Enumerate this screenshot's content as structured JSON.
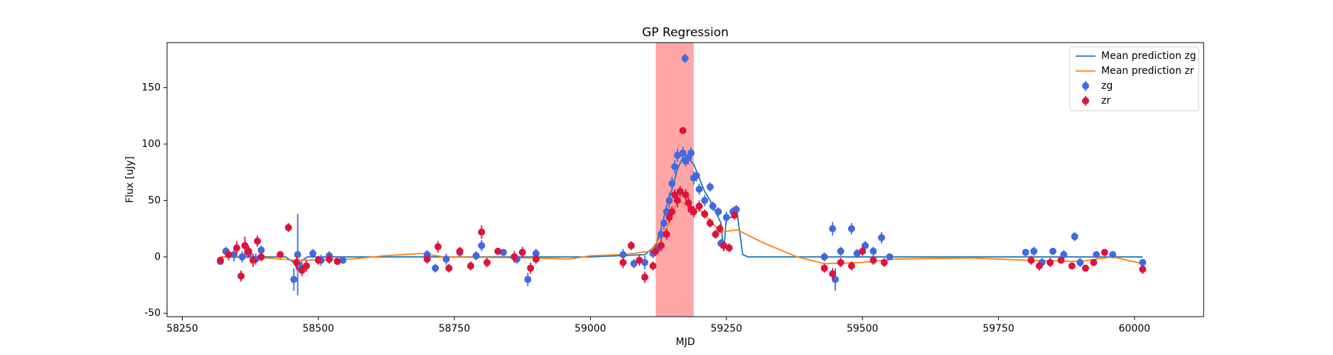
{
  "chart_data": {
    "type": "scatter",
    "title": "GP Regression",
    "x_label": "MJD",
    "y_label": "Flux [uJy]",
    "xlim": [
      58222,
      60127
    ],
    "ylim": [
      -53,
      190
    ],
    "xticks": [
      58250,
      58500,
      58750,
      59000,
      59250,
      59500,
      59750,
      60000
    ],
    "yticks": [
      -50,
      0,
      50,
      100,
      150
    ],
    "legend": "upper right",
    "span": {
      "x": [
        59120,
        59190
      ],
      "color": "#ff0000",
      "opacity": 0.35
    },
    "series": [
      {
        "name": "Mean prediction zg",
        "kind": "line",
        "color": "#1f77b4",
        "x": [
          58320,
          58440,
          58455,
          58462,
          58470,
          58480,
          59000,
          59100,
          59120,
          59130,
          59140,
          59150,
          59160,
          59170,
          59180,
          59190,
          59200,
          59210,
          59220,
          59230,
          59240,
          59245,
          59250,
          59260,
          59270,
          59280,
          59290,
          60015
        ],
        "values": [
          0,
          0,
          -5,
          -12,
          -3,
          0,
          0,
          2,
          10,
          25,
          45,
          60,
          78,
          88,
          88,
          82,
          70,
          58,
          50,
          40,
          30,
          5,
          35,
          35,
          38,
          2,
          0,
          0
        ]
      },
      {
        "name": "Mean prediction zr",
        "kind": "line",
        "color": "#ff7f0e",
        "x": [
          58320,
          58400,
          58460,
          58560,
          58620,
          58690,
          58730,
          58900,
          58960,
          59000,
          59060,
          59110,
          59140,
          59160,
          59180,
          59200,
          59220,
          59240,
          59270,
          59320,
          59380,
          59430,
          59500,
          59560,
          59700,
          59800,
          59900,
          59960,
          60015
        ],
        "values": [
          0,
          -1,
          -3,
          -2,
          1,
          3,
          0,
          -1,
          -2,
          1,
          2,
          5,
          25,
          50,
          45,
          42,
          32,
          22,
          24,
          12,
          0,
          -6,
          -5,
          -2,
          -1,
          -3,
          -4,
          0,
          -6
        ]
      },
      {
        "name": "zg",
        "kind": "errorbar",
        "color": "#4169e1",
        "x": [
          58320,
          58330,
          58345,
          58360,
          58372,
          58385,
          58395,
          58455,
          58462,
          58470,
          58490,
          58505,
          58520,
          58545,
          58700,
          58715,
          58735,
          58760,
          58790,
          58800,
          58840,
          58865,
          58885,
          58900,
          59060,
          59080,
          59100,
          59115,
          59125,
          59130,
          59135,
          59140,
          59145,
          59150,
          59155,
          59160,
          59174,
          59170,
          59175,
          59180,
          59185,
          59190,
          59195,
          59200,
          59210,
          59220,
          59225,
          59235,
          59240,
          59250,
          59262,
          59268,
          59430,
          59445,
          59450,
          59460,
          59480,
          59490,
          59505,
          59520,
          59535,
          59550,
          59800,
          59815,
          59830,
          59850,
          59870,
          59890,
          59900,
          59930,
          59960,
          60015
        ],
        "values": [
          -4,
          5,
          2,
          0,
          3,
          -2,
          6,
          -20,
          2,
          -10,
          3,
          -3,
          1,
          -3,
          2,
          -10,
          -2,
          4,
          1,
          10,
          4,
          -2,
          -20,
          3,
          2,
          -6,
          -5,
          3,
          8,
          20,
          30,
          40,
          50,
          65,
          80,
          90,
          176,
          92,
          85,
          88,
          92,
          70,
          72,
          60,
          50,
          62,
          45,
          40,
          12,
          35,
          40,
          42,
          0,
          25,
          -20,
          5,
          25,
          3,
          10,
          5,
          17,
          0,
          4,
          5,
          -5,
          5,
          2,
          18,
          -5,
          2,
          2,
          -5
        ],
        "errors": [
          3,
          4,
          6,
          5,
          4,
          5,
          4,
          10,
          36,
          5,
          4,
          5,
          4,
          3,
          4,
          4,
          5,
          4,
          4,
          5,
          3,
          4,
          6,
          4,
          5,
          4,
          6,
          4,
          4,
          5,
          6,
          6,
          7,
          6,
          6,
          6,
          4,
          6,
          5,
          6,
          5,
          6,
          5,
          5,
          5,
          4,
          4,
          4,
          4,
          5,
          4,
          4,
          4,
          6,
          10,
          4,
          5,
          4,
          4,
          4,
          5,
          3,
          3,
          4,
          4,
          3,
          4,
          4,
          4,
          3,
          3,
          3
        ]
      },
      {
        "name": "zr",
        "kind": "errorbar",
        "color": "#dc143c",
        "x": [
          58320,
          58335,
          58350,
          58358,
          58365,
          58372,
          58380,
          58388,
          58395,
          58430,
          58445,
          58460,
          58470,
          58478,
          58500,
          58520,
          58535,
          58700,
          58720,
          58740,
          58760,
          58780,
          58800,
          58810,
          58830,
          58860,
          58875,
          58890,
          58900,
          59060,
          59075,
          59090,
          59100,
          59115,
          59120,
          59130,
          59140,
          59145,
          59150,
          59155,
          59160,
          59165,
          59170,
          59175,
          59180,
          59185,
          59190,
          59200,
          59210,
          59220,
          59230,
          59238,
          59245,
          59255,
          59265,
          59430,
          59445,
          59460,
          59480,
          59500,
          59520,
          59540,
          59810,
          59825,
          59845,
          59865,
          59885,
          59910,
          59925,
          59945,
          60015
        ],
        "values": [
          -3,
          2,
          8,
          -17,
          10,
          5,
          -3,
          14,
          0,
          2,
          26,
          -5,
          -12,
          -8,
          -3,
          -2,
          -4,
          -2,
          9,
          -10,
          5,
          -8,
          22,
          -5,
          5,
          0,
          4,
          -10,
          -2,
          -5,
          10,
          -3,
          -18,
          -8,
          5,
          10,
          20,
          35,
          40,
          55,
          50,
          58,
          112,
          55,
          48,
          42,
          40,
          45,
          38,
          30,
          20,
          25,
          10,
          8,
          37,
          -10,
          -15,
          -5,
          -8,
          5,
          -3,
          -5,
          -3,
          -8,
          -5,
          -3,
          -8,
          -10,
          -5,
          4,
          -11
        ],
        "errors": [
          3,
          5,
          6,
          5,
          8,
          5,
          6,
          5,
          4,
          3,
          4,
          6,
          5,
          5,
          4,
          4,
          3,
          4,
          5,
          4,
          4,
          4,
          6,
          4,
          3,
          5,
          5,
          5,
          4,
          5,
          4,
          5,
          5,
          4,
          4,
          5,
          5,
          5,
          5,
          5,
          6,
          5,
          3,
          5,
          5,
          5,
          5,
          5,
          4,
          4,
          4,
          4,
          4,
          4,
          4,
          4,
          5,
          4,
          4,
          4,
          4,
          4,
          4,
          4,
          4,
          3,
          3,
          3,
          3,
          3,
          4
        ]
      }
    ]
  }
}
